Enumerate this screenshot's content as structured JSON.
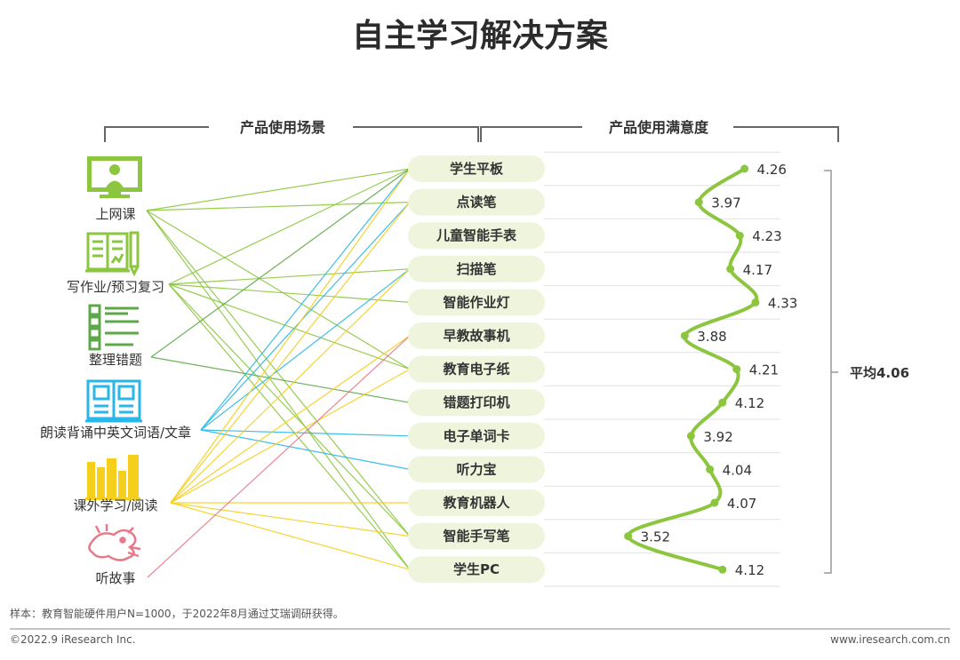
{
  "chart_data": {
    "type": "line",
    "title": "自主学习解决方案",
    "left_header": "产品使用场景",
    "right_header": "产品使用满意度",
    "scenes": [
      {
        "label": "上网课",
        "icon": "monitor-teacher-icon",
        "color": "#8cc63f"
      },
      {
        "label": "写作业/预习复习",
        "icon": "notebook-pencil-icon",
        "color": "#8cc63f"
      },
      {
        "label": "整理错题",
        "icon": "checklist-icon",
        "color": "#5ea84a"
      },
      {
        "label": "朗读背诵中英文词语/文章",
        "icon": "dictionary-icon",
        "color": "#29b6e8"
      },
      {
        "label": "课外学习/阅读",
        "icon": "books-icon",
        "color": "#f5cf1c"
      },
      {
        "label": "听故事",
        "icon": "dragon-icon",
        "color": "#e8788a"
      }
    ],
    "categories": [
      "学生平板",
      "点读笔",
      "儿童智能手表",
      "扫描笔",
      "智能作业灯",
      "早教故事机",
      "教育电子纸",
      "错题打印机",
      "电子单词卡",
      "听力宝",
      "教育机器人",
      "智能手写笔",
      "学生PC"
    ],
    "series": [
      {
        "values": [
          4.26,
          3.97,
          4.23,
          4.17,
          4.33,
          3.88,
          4.21,
          4.12,
          3.92,
          4.04,
          4.07,
          3.52,
          4.12
        ]
      }
    ],
    "value_labels": [
      "4.26",
      "3.97",
      "4.23",
      "4.17",
      "4.33",
      "3.88",
      "4.21",
      "4.12",
      "3.92",
      "4.04",
      "4.07",
      "3.52",
      "4.12"
    ],
    "xlim": [
      3.2,
      4.5
    ],
    "average_label": "平均4.06",
    "links": [
      [
        0,
        0
      ],
      [
        0,
        1
      ],
      [
        0,
        6
      ],
      [
        0,
        11
      ],
      [
        0,
        12
      ],
      [
        1,
        0
      ],
      [
        1,
        3
      ],
      [
        1,
        4
      ],
      [
        1,
        6
      ],
      [
        1,
        11
      ],
      [
        1,
        12
      ],
      [
        2,
        0
      ],
      [
        2,
        7
      ],
      [
        3,
        0
      ],
      [
        3,
        1
      ],
      [
        3,
        3
      ],
      [
        3,
        8
      ],
      [
        3,
        9
      ],
      [
        4,
        0
      ],
      [
        4,
        1
      ],
      [
        4,
        3
      ],
      [
        4,
        5
      ],
      [
        4,
        6
      ],
      [
        4,
        10
      ],
      [
        4,
        11
      ],
      [
        4,
        12
      ],
      [
        5,
        5
      ]
    ],
    "line_color": "#8cc63f",
    "pill_color": "#eef5dc"
  },
  "footer": {
    "sample_note": "样本：教育智能硬件用户N=1000，于2022年8月通过艾瑞调研获得。",
    "copyright": "©2022.9 iResearch Inc.",
    "website": "www.iresearch.com.cn"
  }
}
